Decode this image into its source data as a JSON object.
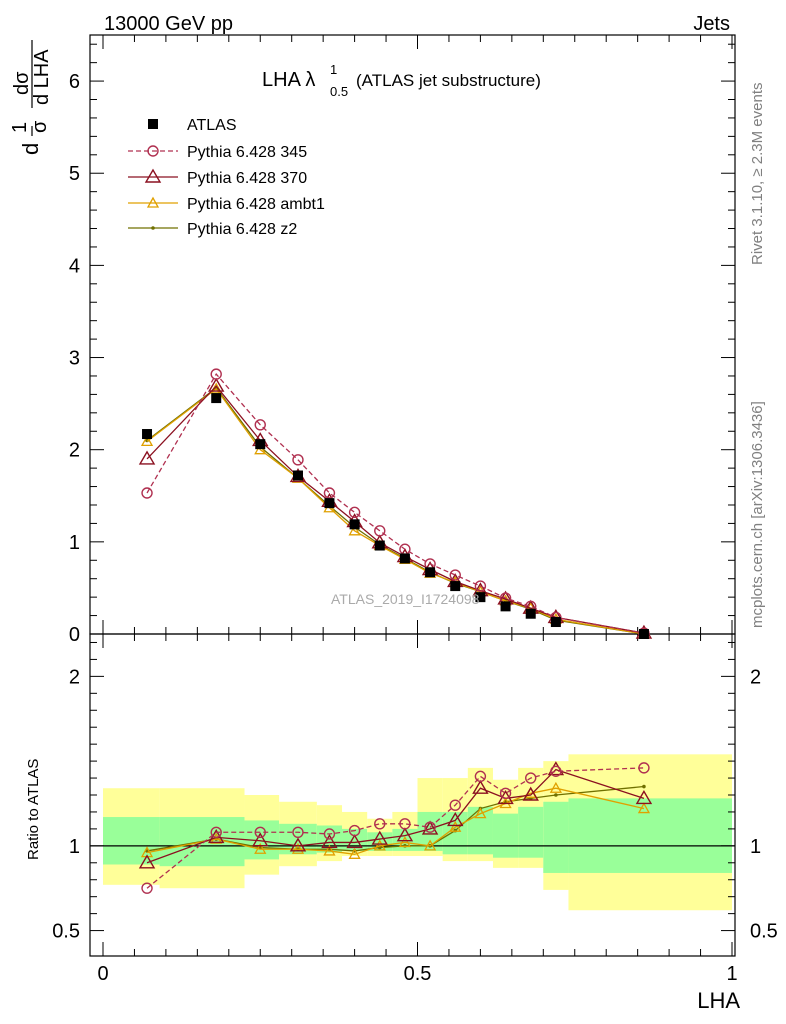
{
  "header": {
    "left": "13000 GeV pp",
    "right": "Jets"
  },
  "title": {
    "main": "LHA λ",
    "sup": "1",
    "sub": "0.5",
    "paren": "(ATLAS jet substructure)"
  },
  "side_labels": {
    "top": "Rivet 3.1.10, ≥ 2.3M events",
    "bottom": "mcplots.cern.ch [arXiv:1306.3436]"
  },
  "watermark": "ATLAS_2019_I1724098",
  "ylabel_top": {
    "d1": "d",
    "sigma": "σ",
    "one": "1",
    "d2": "d",
    "dsigma": "dσ",
    "dLHA": "d LHA"
  },
  "ylabel_bottom": "Ratio to ATLAS",
  "xlabel": "LHA",
  "colors": {
    "atlas": "#000000",
    "p345": "#b03050",
    "p370": "#8b1020",
    "ambt1": "#e0a000",
    "z2": "#707000",
    "band_yellow": "#ffff99",
    "band_green": "#99ff99"
  },
  "chart_data": [
    {
      "type": "scatter",
      "panel": "main",
      "xlim": [
        0,
        1
      ],
      "ylim": [
        0,
        6.5
      ],
      "yticks": [
        0,
        1,
        2,
        3,
        4,
        5,
        6
      ],
      "yticklabels": [
        "0",
        "1",
        "2",
        "3",
        "4",
        "5",
        "6"
      ],
      "x": [
        0.07,
        0.18,
        0.25,
        0.31,
        0.36,
        0.4,
        0.44,
        0.48,
        0.52,
        0.56,
        0.6,
        0.64,
        0.68,
        0.72,
        0.86
      ],
      "series": [
        {
          "name": "ATLAS",
          "key": "atlas",
          "marker": "square",
          "values": [
            2.17,
            2.56,
            2.06,
            1.72,
            1.42,
            1.19,
            0.96,
            0.82,
            0.67,
            0.52,
            0.4,
            0.3,
            0.22,
            0.13,
            0.0
          ]
        },
        {
          "name": "Pythia 6.428 345",
          "key": "p345",
          "marker": "circle",
          "dash": true,
          "values": [
            1.53,
            2.82,
            2.27,
            1.89,
            1.53,
            1.32,
            1.12,
            0.92,
            0.76,
            0.64,
            0.52,
            0.39,
            0.3,
            0.18,
            0.01
          ]
        },
        {
          "name": "Pythia 6.428 370",
          "key": "p370",
          "marker": "triangle",
          "values": [
            1.9,
            2.69,
            2.1,
            1.71,
            1.44,
            1.22,
            0.99,
            0.84,
            0.7,
            0.57,
            0.47,
            0.38,
            0.28,
            0.18,
            0.01
          ]
        },
        {
          "name": "Pythia 6.428 ambt1",
          "key": "ambt1",
          "marker": "smalltriangle",
          "values": [
            2.09,
            2.66,
            2.0,
            1.69,
            1.37,
            1.12,
            0.96,
            0.81,
            0.66,
            0.56,
            0.46,
            0.36,
            0.28,
            0.16,
            0.0
          ]
        },
        {
          "name": "Pythia 6.428 z2",
          "key": "z2",
          "marker": "dot",
          "values": [
            2.1,
            2.67,
            2.03,
            1.69,
            1.39,
            1.16,
            0.97,
            0.82,
            0.67,
            0.55,
            0.46,
            0.36,
            0.27,
            0.15,
            0.0
          ]
        }
      ]
    },
    {
      "type": "line",
      "panel": "ratio",
      "xlim": [
        0,
        1
      ],
      "ylim": [
        0.35,
        2.25
      ],
      "yticks": [
        0.5,
        1,
        2
      ],
      "yticklabels": [
        "0.5",
        "1",
        "2"
      ],
      "xticks": [
        0,
        0.5,
        1
      ],
      "xticklabels": [
        "0",
        "0.5",
        "1"
      ],
      "x": [
        0.07,
        0.18,
        0.25,
        0.31,
        0.36,
        0.4,
        0.44,
        0.48,
        0.52,
        0.56,
        0.6,
        0.64,
        0.68,
        0.72,
        0.86
      ],
      "bands": {
        "edges": [
          0.0,
          0.09,
          0.225,
          0.28,
          0.34,
          0.38,
          0.42,
          0.46,
          0.5,
          0.54,
          0.58,
          0.62,
          0.66,
          0.7,
          0.74,
          1.0
        ],
        "yellow_low": [
          0.77,
          0.75,
          0.83,
          0.88,
          0.91,
          0.94,
          0.94,
          0.94,
          0.94,
          0.91,
          0.91,
          0.87,
          0.87,
          0.74,
          0.62
        ],
        "yellow_high": [
          1.34,
          1.34,
          1.3,
          1.26,
          1.24,
          1.2,
          1.16,
          1.2,
          1.4,
          1.4,
          1.46,
          1.39,
          1.46,
          1.5,
          1.54
        ],
        "green_low": [
          0.89,
          0.88,
          0.92,
          0.95,
          0.96,
          0.97,
          0.97,
          0.97,
          0.97,
          0.95,
          0.95,
          0.93,
          0.93,
          0.84,
          0.84
        ],
        "green_high": [
          1.17,
          1.17,
          1.15,
          1.13,
          1.12,
          1.1,
          1.08,
          1.1,
          1.2,
          1.2,
          1.23,
          1.19,
          1.23,
          1.26,
          1.28
        ]
      },
      "series": [
        {
          "name": "Pythia 6.428 345",
          "key": "p345",
          "marker": "circle",
          "dash": true,
          "values": [
            0.75,
            1.08,
            1.08,
            1.08,
            1.07,
            1.09,
            1.13,
            1.13,
            1.11,
            1.24,
            1.41,
            1.31,
            1.4,
            1.44,
            1.46
          ]
        },
        {
          "name": "Pythia 6.428 370",
          "key": "p370",
          "marker": "triangle",
          "values": [
            0.9,
            1.05,
            1.03,
            1.0,
            1.02,
            1.02,
            1.04,
            1.06,
            1.1,
            1.15,
            1.34,
            1.28,
            1.3,
            1.45,
            1.28
          ]
        },
        {
          "name": "Pythia 6.428 ambt1",
          "key": "ambt1",
          "marker": "smalltriangle",
          "values": [
            0.96,
            1.04,
            0.98,
            0.98,
            0.97,
            0.95,
            1.0,
            1.02,
            1.0,
            1.11,
            1.19,
            1.25,
            1.31,
            1.34,
            1.22
          ]
        },
        {
          "name": "Pythia 6.428 z2",
          "key": "z2",
          "marker": "dot",
          "values": [
            0.97,
            1.04,
            0.99,
            0.98,
            0.98,
            0.97,
            0.99,
            1.0,
            1.0,
            1.09,
            1.22,
            1.26,
            1.28,
            1.3,
            1.35
          ]
        }
      ]
    }
  ]
}
